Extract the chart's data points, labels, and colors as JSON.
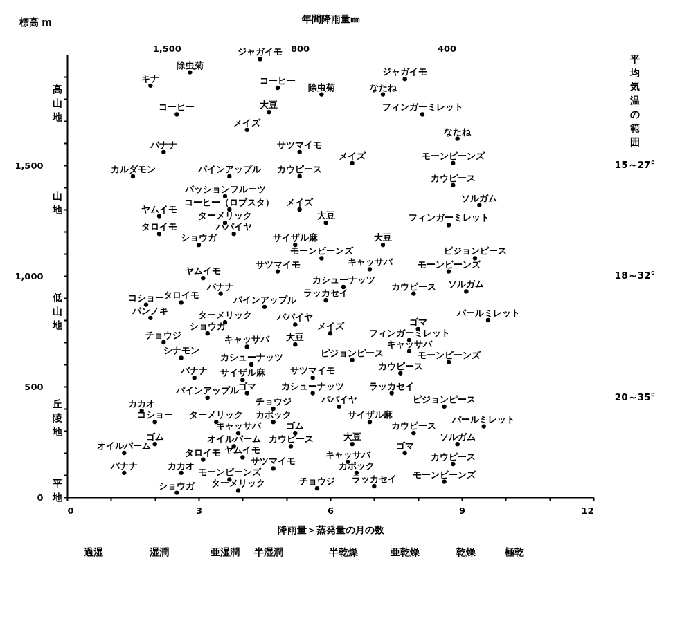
{
  "chart_data": {
    "type": "scatter",
    "xlabel": "降雨量＞蒸発量の月の数",
    "ylabel": "標高 m",
    "x2label": "年間降雨量㎜",
    "marker": "circle",
    "grid": false,
    "log": "x2",
    "xlim": [
      0,
      12
    ],
    "xticks": [
      0,
      {
        "value": 1,
        "label": null
      },
      {
        "value": 2,
        "label": null
      },
      3,
      {
        "value": 4,
        "label": null
      },
      {
        "value": 5,
        "label": null
      },
      6,
      {
        "value": 7,
        "label": null
      },
      {
        "value": 8,
        "label": null
      },
      9,
      {
        "value": 10,
        "label": null
      },
      {
        "value": 11,
        "label": null
      },
      12
    ],
    "ylim": [
      0,
      2000
    ],
    "yticks": [
      0,
      {
        "value": 100,
        "label": null
      },
      {
        "value": 200,
        "label": null
      },
      {
        "value": 300,
        "label": null
      },
      {
        "value": 400,
        "label": null
      },
      500,
      {
        "value": 600,
        "label": null
      },
      {
        "value": 700,
        "label": null
      },
      {
        "value": 800,
        "label": null
      },
      {
        "value": 900,
        "label": null
      },
      {
        "value": 1000,
        "label": "1,000"
      },
      {
        "value": 1100,
        "label": null
      },
      {
        "value": 1200,
        "label": null
      },
      {
        "value": 1300,
        "label": null
      },
      {
        "value": 1400,
        "label": null
      },
      {
        "value": 1500,
        "label": "1,500"
      },
      {
        "value": 1600,
        "label": null
      },
      {
        "value": 1700,
        "label": null
      },
      {
        "value": 1800,
        "label": null
      },
      {
        "value": 1900,
        "label": null
      }
    ],
    "x2lim": [
      2400,
      200
    ],
    "x2ticks": [
      {
        "value": 1500,
        "label": "1,500"
      },
      800,
      400
    ],
    "series": [
      {
        "color": "#000000",
        "x": [
          4.4,
          2.8,
          1.9,
          4.8,
          5.8,
          7.7,
          7.2,
          2.5,
          4.6,
          8.1,
          4.1,
          8.9,
          2.2,
          5.3,
          6.5,
          8.8,
          1.5,
          3.7,
          5.3,
          8.8,
          3.6,
          9.4,
          2.1,
          3.7,
          5.3,
          3.6,
          5.9,
          8.7,
          2.1,
          3.8,
          3.0,
          5.2,
          7.2,
          5.8,
          9.3,
          4.8,
          6.9,
          8.7,
          3.1,
          6.3,
          7.9,
          9.1,
          3.5,
          1.8,
          2.6,
          4.5,
          5.9,
          1.9,
          3.6,
          5.2,
          6.0,
          8.0,
          9.6,
          2.2,
          3.2,
          4.1,
          5.2,
          7.8,
          2.6,
          4.2,
          6.5,
          7.8,
          8.7,
          2.9,
          4.0,
          5.6,
          7.6,
          3.2,
          4.1,
          5.6,
          7.4,
          1.7,
          4.7,
          6.2,
          8.6,
          2.0,
          3.4,
          4.7,
          6.9,
          9.5,
          7.9,
          3.9,
          5.2,
          2.0,
          3.8,
          5.1,
          6.5,
          8.9,
          1.3,
          7.7,
          3.1,
          4.0,
          4.7,
          6.4,
          8.8,
          1.3,
          2.6,
          6.6,
          3.7,
          7.0,
          8.6,
          2.5,
          3.9,
          5.7
        ],
        "values": [
          1980,
          1920,
          1860,
          1850,
          1820,
          1890,
          1820,
          1730,
          1740,
          1730,
          1660,
          1620,
          1560,
          1560,
          1510,
          1510,
          1450,
          1450,
          1450,
          1410,
          1360,
          1320,
          1270,
          1300,
          1300,
          1240,
          1240,
          1230,
          1190,
          1190,
          1140,
          1140,
          1140,
          1080,
          1080,
          1020,
          1030,
          1020,
          990,
          950,
          920,
          930,
          920,
          870,
          880,
          860,
          890,
          810,
          790,
          780,
          740,
          760,
          800,
          700,
          740,
          680,
          690,
          710,
          630,
          600,
          620,
          660,
          610,
          540,
          530,
          540,
          560,
          450,
          470,
          470,
          470,
          390,
          400,
          410,
          410,
          340,
          340,
          340,
          340,
          320,
          290,
          290,
          290,
          240,
          230,
          230,
          240,
          240,
          200,
          200,
          170,
          180,
          130,
          160,
          150,
          110,
          110,
          110,
          80,
          50,
          70,
          20,
          30,
          40
        ],
        "value_labels": [
          "ジャガイモ",
          "除虫菊",
          "キナ",
          "コーヒー",
          "除虫菊",
          "ジャガイモ",
          "なたね",
          "コーヒー",
          "大豆",
          "フィンガーミレット",
          "メイズ",
          "なたね",
          "バナナ",
          "サツマイモ",
          "メイズ",
          "モーンビーンズ",
          "カルダモン",
          "パインアップル",
          "カウピース",
          "カウピース",
          "パッションフルーツ",
          "ソルガム",
          "ヤムイモ",
          "コーヒー（ロブスタ）",
          "メイズ",
          "ターメリック",
          "大豆",
          "フィンガーミレット",
          "タロイモ",
          "パパイヤ",
          "ショウガ",
          "サイザル麻",
          "大豆",
          "モーンビーンズ",
          "ピジョンピース",
          "サツマイモ",
          "キャッサバ",
          "モーンビーンズ",
          "ヤムイモ",
          "カシューナッツ",
          "カウピース",
          "ソルガム",
          "バナナ",
          "コショー",
          "タロイモ",
          "パインアップル",
          "ラッカセイ",
          "パンノキ",
          "ターメリック",
          "パパイヤ",
          "メイズ",
          "ゴマ",
          "パールミレット",
          "チョウジ",
          "ショウガ",
          "キャッサバ",
          "大豆",
          "フィンガーミレット",
          "シナモン",
          "カシューナッツ",
          "ピジョンピース",
          "キャッサバ",
          "モーンビーンズ",
          "バナナ",
          "サイザル麻",
          "サツマイモ",
          "カウピース",
          "パインアップル",
          "ゴマ",
          "カシューナッツ",
          "ラッカセイ",
          "カカオ",
          "チョウジ",
          "パパイヤ",
          "ピジョンピース",
          "コショー",
          "ターメリック",
          "カポック",
          "サイザル麻",
          "パールミレット",
          "カウピース",
          "キャッサバ",
          "ゴム",
          "ゴム",
          "オイルパーム",
          "カウピース",
          "大豆",
          "ソルガム",
          "オイルパーム",
          "ゴマ",
          "タロイモ",
          "ヤムイモ",
          "サツマイモ",
          "キャッサバ",
          "カウピース",
          "バナナ",
          "カカオ",
          "カポック",
          "モーンビーンズ",
          "ラッカセイ",
          "モーンビーンズ",
          "ショウガ",
          "ターメリック",
          "チョウジ"
        ]
      }
    ],
    "annotations": [
      "高山地",
      "山地",
      "低山地",
      "丘陵地",
      "平地",
      "過湿",
      "湿潤",
      "亜湿潤",
      "半湿潤",
      "半乾燥",
      "亜乾燥",
      "乾燥",
      "極乾",
      "平均気温の範囲",
      "15～27°",
      "18～32°",
      "20～35°"
    ]
  }
}
